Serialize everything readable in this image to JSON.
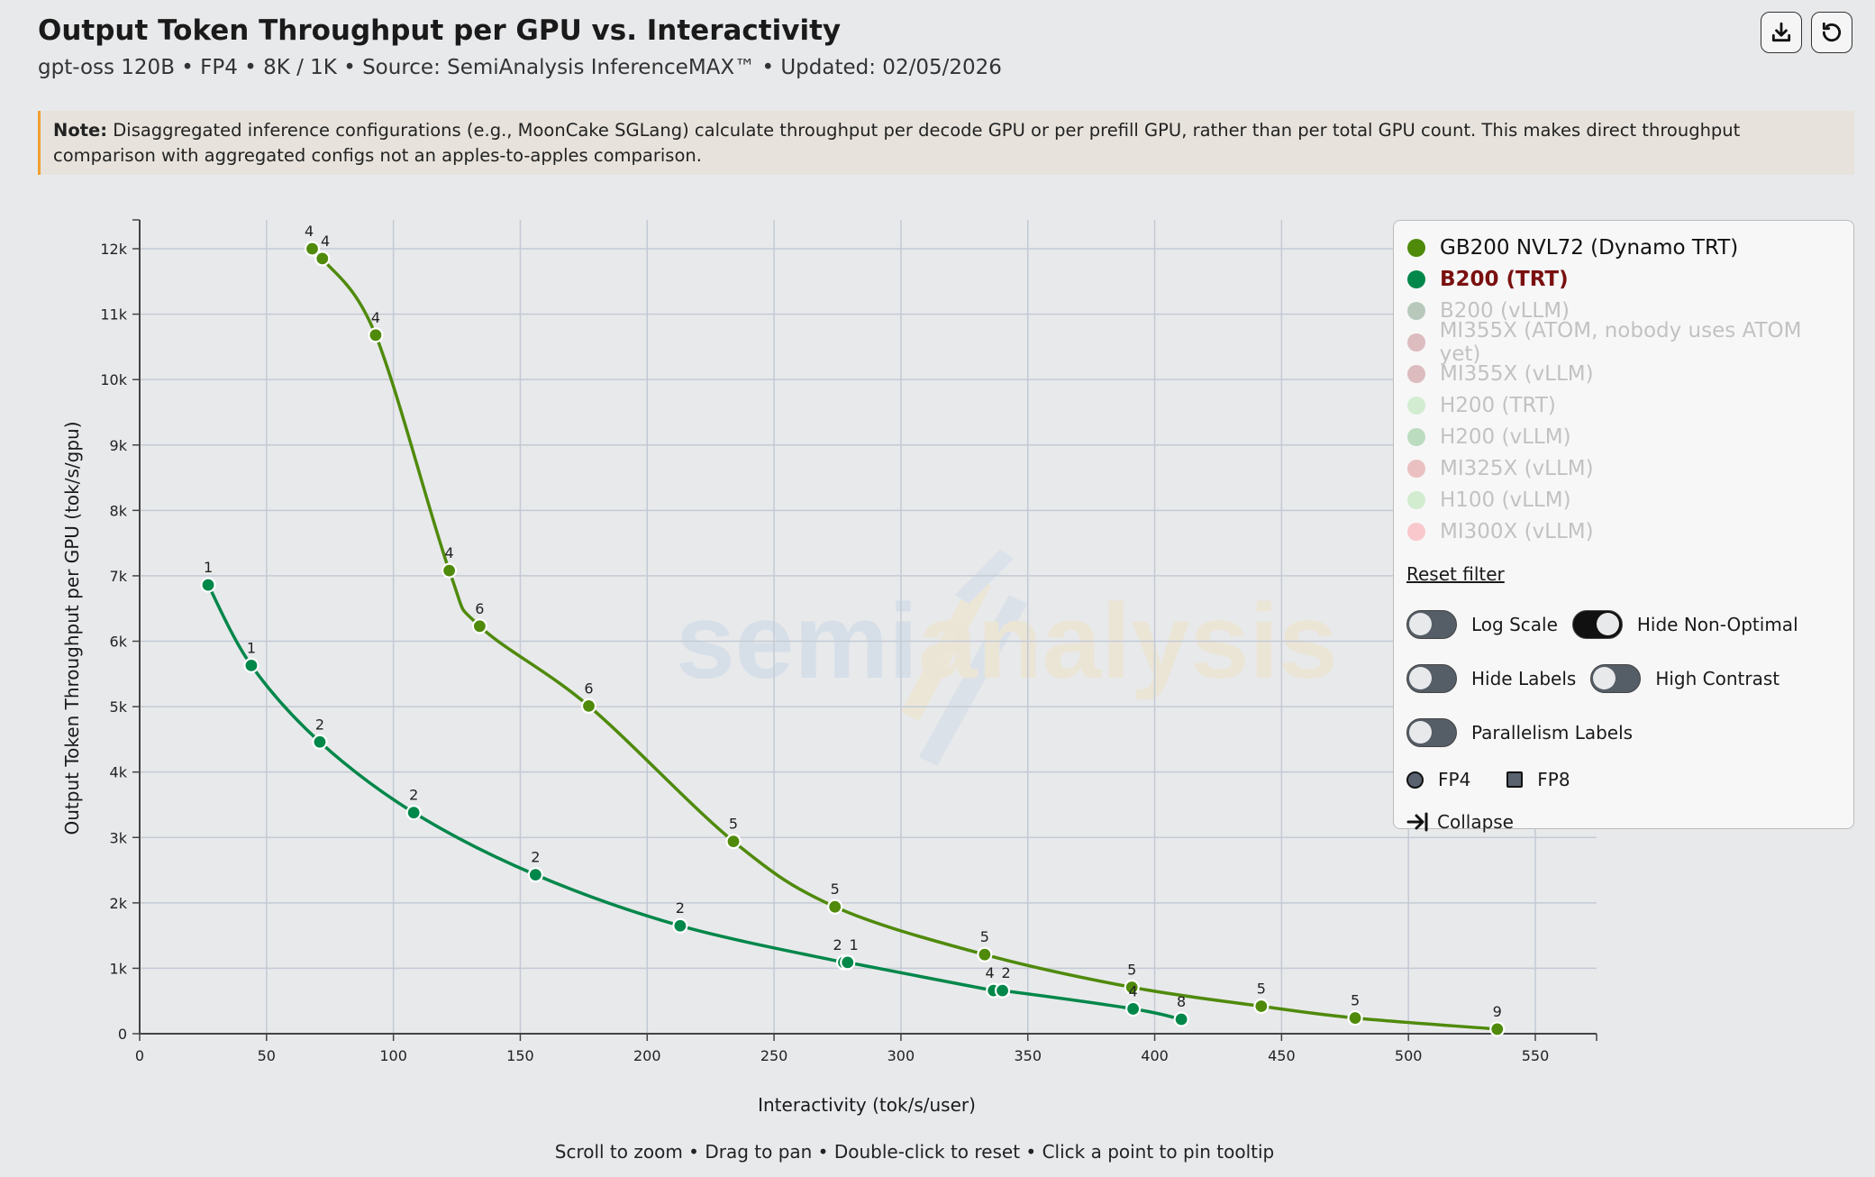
{
  "header": {
    "title": "Output Token Throughput per GPU vs. Interactivity",
    "subtitle": "gpt-oss 120B • FP4 • 8K / 1K • Source: SemiAnalysis InferenceMAX™ • Updated: 02/05/2026",
    "download_icon": "download-icon",
    "reset_icon": "reset-zoom-icon"
  },
  "note": {
    "label": "Note:",
    "text": "Disaggregated inference configurations (e.g., MoonCake SGLang) calculate throughput per decode GPU or per prefill GPU, rather than per total GPU count. This makes direct throughput comparison with aggregated configs not an apples-to-apples comparison."
  },
  "watermark": {
    "left": "semi",
    "right": "analysis"
  },
  "legend": {
    "items": [
      {
        "label": "GB200 NVL72 (Dynamo TRT)",
        "color": "#4f8a0b",
        "active": true
      },
      {
        "label": "B200 (TRT)",
        "color": "#00874a",
        "active": true,
        "highlighted": true
      },
      {
        "label": "B200 (vLLM)",
        "color": "#b8c9bc",
        "active": false
      },
      {
        "label": "MI355X (ATOM, nobody uses ATOM yet)",
        "color": "#dcbcbf",
        "active": false
      },
      {
        "label": "MI355X (vLLM)",
        "color": "#dcbcbf",
        "active": false
      },
      {
        "label": "H200 (TRT)",
        "color": "#d2ecd2",
        "active": false
      },
      {
        "label": "H200 (vLLM)",
        "color": "#bcdcc0",
        "active": false
      },
      {
        "label": "MI325X (vLLM)",
        "color": "#ebc0c0",
        "active": false
      },
      {
        "label": "H100 (vLLM)",
        "color": "#d2ecd0",
        "active": false
      },
      {
        "label": "MI300X (vLLM)",
        "color": "#f8c8cc",
        "active": false
      }
    ],
    "reset_filter": "Reset filter",
    "toggles": {
      "log_scale": {
        "label": "Log Scale",
        "on": false
      },
      "hide_non_optimal": {
        "label": "Hide Non-Optimal",
        "on": true
      },
      "hide_labels": {
        "label": "Hide Labels",
        "on": false
      },
      "high_contrast": {
        "label": "High Contrast",
        "on": false
      },
      "parallelism_labels": {
        "label": "Parallelism Labels",
        "on": false
      }
    },
    "formats": {
      "fp4": "FP4",
      "fp8": "FP8"
    },
    "collapse": "Collapse"
  },
  "footer": "Scroll to zoom • Drag to pan • Double-click to reset • Click a point to pin tooltip",
  "chart_data": {
    "type": "line",
    "title": "Output Token Throughput per GPU vs. Interactivity",
    "xlabel": "Interactivity (tok/s/user)",
    "ylabel": "Output Token Throughput per GPU (tok/s/gpu)",
    "xlim": [
      0,
      575
    ],
    "ylim": [
      0,
      12450
    ],
    "grid": true,
    "legend_placement": "top-right",
    "x_ticks": [
      0,
      50,
      100,
      150,
      200,
      250,
      300,
      350,
      400,
      450,
      500,
      550
    ],
    "x_tick_labels": [
      "0",
      "50",
      "100",
      "150",
      "200",
      "250",
      "300",
      "350",
      "400",
      "450",
      "500",
      "550"
    ],
    "y_ticks": [
      0,
      1000,
      2000,
      3000,
      4000,
      5000,
      6000,
      7000,
      8000,
      9000,
      10000,
      11000,
      12000
    ],
    "y_tick_labels": [
      "0",
      "1k",
      "2k",
      "3k",
      "4k",
      "5k",
      "6k",
      "7k",
      "8k",
      "9k",
      "10k",
      "11k",
      "12k"
    ],
    "series": [
      {
        "name": "GB200 NVL72 (Dynamo TRT)",
        "color": "#4f8a0b",
        "x": [
          68,
          72,
          93,
          122,
          134,
          177,
          234,
          274,
          333,
          391,
          442,
          479,
          535
        ],
        "y": [
          12000,
          11850,
          10680,
          7080,
          6230,
          5010,
          2940,
          1940,
          1210,
          710,
          420,
          240,
          70
        ],
        "labels": [
          "4",
          "4",
          "4",
          "4",
          "6",
          "6",
          "5",
          "5",
          "5",
          "5",
          "5",
          "5",
          "9"
        ]
      },
      {
        "name": "B200 (TRT)",
        "color": "#00874a",
        "x": [
          27,
          44,
          71,
          108,
          156,
          213,
          277.5,
          279,
          336.5,
          340,
          391.5,
          410.5
        ],
        "y": [
          6860,
          5630,
          4460,
          3380,
          2430,
          1650,
          1090,
          1090,
          660,
          660,
          380,
          220
        ],
        "labels": [
          "1",
          "1",
          "2",
          "2",
          "2",
          "2",
          "2",
          "1",
          "4",
          "2",
          "4",
          "8"
        ]
      }
    ]
  }
}
